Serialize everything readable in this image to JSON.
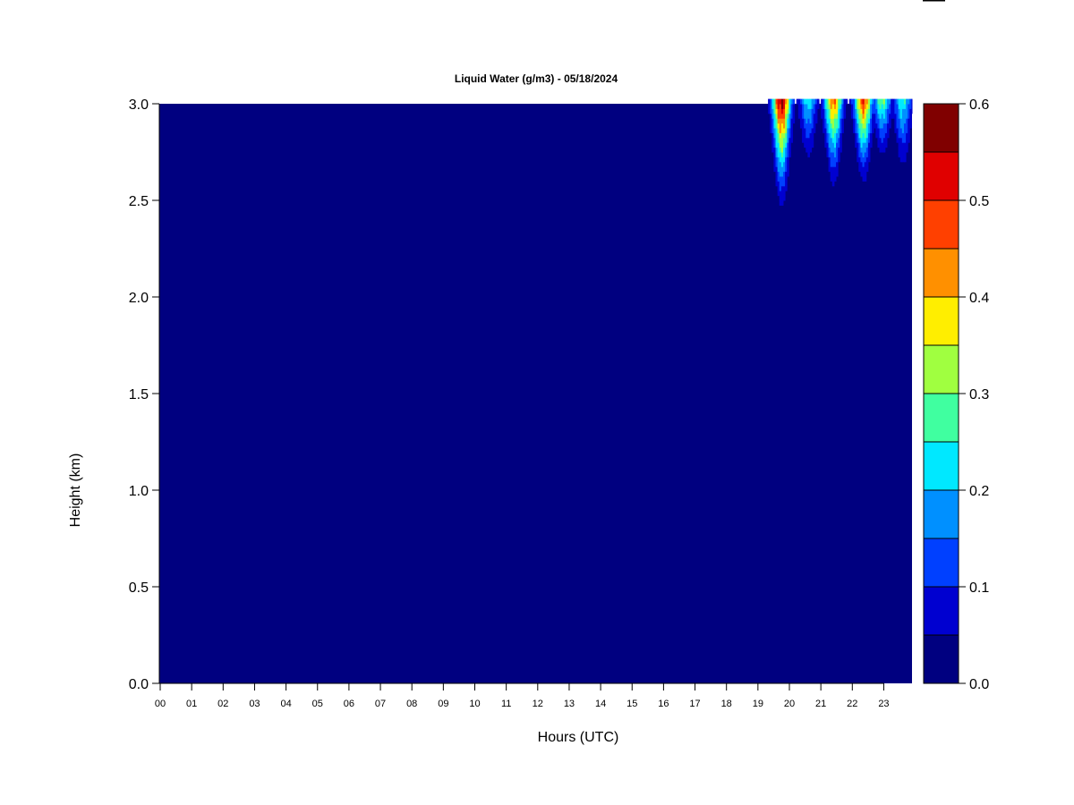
{
  "chart_data": {
    "type": "heatmap",
    "subtype": "filled-contour",
    "title": "Liquid Water (g/m3) - 05/18/2024",
    "xlabel": "Hours (UTC)",
    "ylabel": "Height (km)",
    "xlim": [
      0,
      24
    ],
    "ylim": [
      0,
      3.0
    ],
    "x_tick_labels": [
      "00",
      "01",
      "02",
      "03",
      "04",
      "05",
      "06",
      "07",
      "08",
      "09",
      "10",
      "11",
      "12",
      "13",
      "14",
      "15",
      "16",
      "17",
      "18",
      "19",
      "20",
      "21",
      "22",
      "23"
    ],
    "y_tick_labels": [
      "0.0",
      "0.5",
      "1.0",
      "1.5",
      "2.0",
      "2.5",
      "3.0"
    ],
    "colorbar": {
      "levels": [
        0.0,
        0.05,
        0.1,
        0.15,
        0.2,
        0.25,
        0.3,
        0.35,
        0.4,
        0.45,
        0.5,
        0.55,
        0.6
      ],
      "tick_labels": [
        "0.0",
        "0.1",
        "0.2",
        "0.3",
        "0.4",
        "0.5",
        "0.6"
      ],
      "colors": [
        "#000080",
        "#0000d0",
        "#0040ff",
        "#0090ff",
        "#00e8ff",
        "#40ffa0",
        "#a0ff40",
        "#ffee00",
        "#ff9000",
        "#ff4000",
        "#e00000",
        "#800000"
      ]
    },
    "background_value": 0.0,
    "cloud_features": [
      {
        "hour": 19.75,
        "peak_value": 0.57,
        "base_km": 2.33
      },
      {
        "hour": 20.6,
        "peak_value": 0.22,
        "base_km": 2.55
      },
      {
        "hour": 21.4,
        "peak_value": 0.44,
        "base_km": 2.45
      },
      {
        "hour": 22.35,
        "peak_value": 0.47,
        "base_km": 2.47
      },
      {
        "hour": 22.95,
        "peak_value": 0.28,
        "base_km": 2.6
      },
      {
        "hour": 23.6,
        "peak_value": 0.24,
        "base_km": 2.5
      }
    ]
  }
}
